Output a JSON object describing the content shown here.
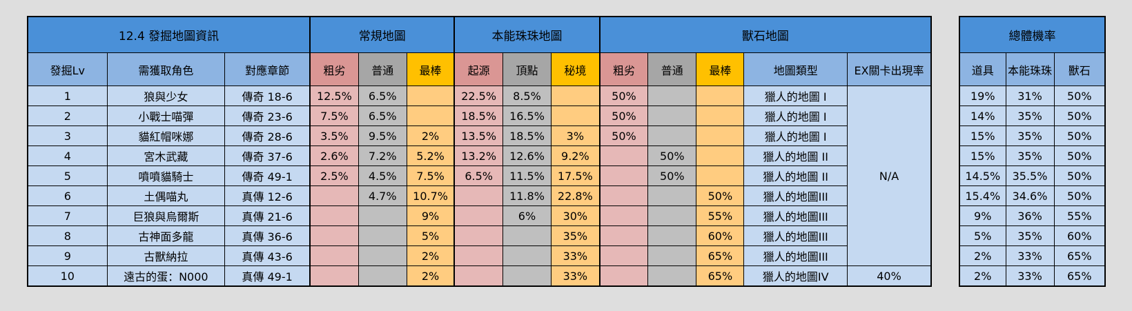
{
  "main": {
    "title": "12.4 發掘地圖資訊",
    "group_regular": "常規地圖",
    "group_instinct": "本能珠珠地圖",
    "group_beast": "獸石地圖",
    "columns": {
      "lv": "發掘Lv",
      "role": "需獲取角色",
      "chapter": "對應章節",
      "reg_poor": "粗劣",
      "reg_norm": "普通",
      "reg_best": "最棒",
      "ins_origin": "起源",
      "ins_peak": "頂點",
      "ins_secret": "秘境",
      "bea_poor": "粗劣",
      "bea_norm": "普通",
      "bea_best": "最棒",
      "map_type": "地圖類型",
      "ex_rate": "EX關卡出現率"
    },
    "ex_na": "N/A",
    "rows": [
      {
        "lv": "1",
        "role": "狼與少女",
        "chapter": "傳奇 18-6",
        "reg_poor": "12.5%",
        "reg_norm": "6.5%",
        "reg_best": "",
        "ins_origin": "22.5%",
        "ins_peak": "8.5%",
        "ins_secret": "",
        "bea_poor": "50%",
        "bea_norm": "",
        "bea_best": "",
        "map_type": "獵人的地圖 I"
      },
      {
        "lv": "2",
        "role": "小戰士喵彈",
        "chapter": "傳奇 23-6",
        "reg_poor": "7.5%",
        "reg_norm": "6.5%",
        "reg_best": "",
        "ins_origin": "18.5%",
        "ins_peak": "16.5%",
        "ins_secret": "",
        "bea_poor": "50%",
        "bea_norm": "",
        "bea_best": "",
        "map_type": "獵人的地圖 I"
      },
      {
        "lv": "3",
        "role": "貓紅帽咪娜",
        "chapter": "傳奇 28-6",
        "reg_poor": "3.5%",
        "reg_norm": "9.5%",
        "reg_best": "2%",
        "ins_origin": "13.5%",
        "ins_peak": "18.5%",
        "ins_secret": "3%",
        "bea_poor": "50%",
        "bea_norm": "",
        "bea_best": "",
        "map_type": "獵人的地圖 I"
      },
      {
        "lv": "4",
        "role": "宮木武藏",
        "chapter": "傳奇 37-6",
        "reg_poor": "2.6%",
        "reg_norm": "7.2%",
        "reg_best": "5.2%",
        "ins_origin": "13.2%",
        "ins_peak": "12.6%",
        "ins_secret": "9.2%",
        "bea_poor": "",
        "bea_norm": "50%",
        "bea_best": "",
        "map_type": "獵人的地圖 II"
      },
      {
        "lv": "5",
        "role": "噴噴貓騎士",
        "chapter": "傳奇 49-1",
        "reg_poor": "2.5%",
        "reg_norm": "4.5%",
        "reg_best": "7.5%",
        "ins_origin": "6.5%",
        "ins_peak": "11.5%",
        "ins_secret": "17.5%",
        "bea_poor": "",
        "bea_norm": "50%",
        "bea_best": "",
        "map_type": "獵人的地圖 II"
      },
      {
        "lv": "6",
        "role": "土偶喵丸",
        "chapter": "真傳 12-6",
        "reg_poor": "",
        "reg_norm": "4.7%",
        "reg_best": "10.7%",
        "ins_origin": "",
        "ins_peak": "11.8%",
        "ins_secret": "22.8%",
        "bea_poor": "",
        "bea_norm": "",
        "bea_best": "50%",
        "map_type": "獵人的地圖III"
      },
      {
        "lv": "7",
        "role": "巨狼與烏爾斯",
        "chapter": "真傳 21-6",
        "reg_poor": "",
        "reg_norm": "",
        "reg_best": "9%",
        "ins_origin": "",
        "ins_peak": "6%",
        "ins_secret": "30%",
        "bea_poor": "",
        "bea_norm": "",
        "bea_best": "55%",
        "map_type": "獵人的地圖III"
      },
      {
        "lv": "8",
        "role": "古神面多龍",
        "chapter": "真傳 36-6",
        "reg_poor": "",
        "reg_norm": "",
        "reg_best": "5%",
        "ins_origin": "",
        "ins_peak": "",
        "ins_secret": "35%",
        "bea_poor": "",
        "bea_norm": "",
        "bea_best": "60%",
        "map_type": "獵人的地圖III"
      },
      {
        "lv": "9",
        "role": "古獸納拉",
        "chapter": "真傳 43-6",
        "reg_poor": "",
        "reg_norm": "",
        "reg_best": "2%",
        "ins_origin": "",
        "ins_peak": "",
        "ins_secret": "33%",
        "bea_poor": "",
        "bea_norm": "",
        "bea_best": "65%",
        "map_type": "獵人的地圖III"
      },
      {
        "lv": "10",
        "role": "遠古的蛋：N000",
        "chapter": "真傳 49-1",
        "reg_poor": "",
        "reg_norm": "",
        "reg_best": "2%",
        "ins_origin": "",
        "ins_peak": "",
        "ins_secret": "33%",
        "bea_poor": "",
        "bea_norm": "",
        "bea_best": "65%",
        "map_type": "獵人的地圖IV",
        "ex_rate": "40%"
      }
    ]
  },
  "prob": {
    "title": "總體機率",
    "columns": {
      "item": "道具",
      "instinct": "本能珠珠",
      "beast": "獸石"
    },
    "rows": [
      {
        "item": "19%",
        "instinct": "31%",
        "beast": "50%"
      },
      {
        "item": "14%",
        "instinct": "35%",
        "beast": "50%"
      },
      {
        "item": "15%",
        "instinct": "35%",
        "beast": "50%"
      },
      {
        "item": "15%",
        "instinct": "35%",
        "beast": "50%"
      },
      {
        "item": "14.5%",
        "instinct": "35.5%",
        "beast": "50%"
      },
      {
        "item": "15.4%",
        "instinct": "34.6%",
        "beast": "50%"
      },
      {
        "item": "9%",
        "instinct": "36%",
        "beast": "55%"
      },
      {
        "item": "5%",
        "instinct": "35%",
        "beast": "60%"
      },
      {
        "item": "2%",
        "instinct": "33%",
        "beast": "65%"
      },
      {
        "item": "2%",
        "instinct": "33%",
        "beast": "65%"
      }
    ]
  },
  "colors": {
    "header_dark": "#4a90d8",
    "header_light": "#8db4e2",
    "row_bg": "#c5d9f1",
    "poor_header": "#da9694",
    "poor_cell": "#e6b8b7",
    "normal_header": "#a6a6a6",
    "normal_cell": "#bfbfbf",
    "best_header": "#ffc000",
    "best_cell": "#ffcc80"
  }
}
